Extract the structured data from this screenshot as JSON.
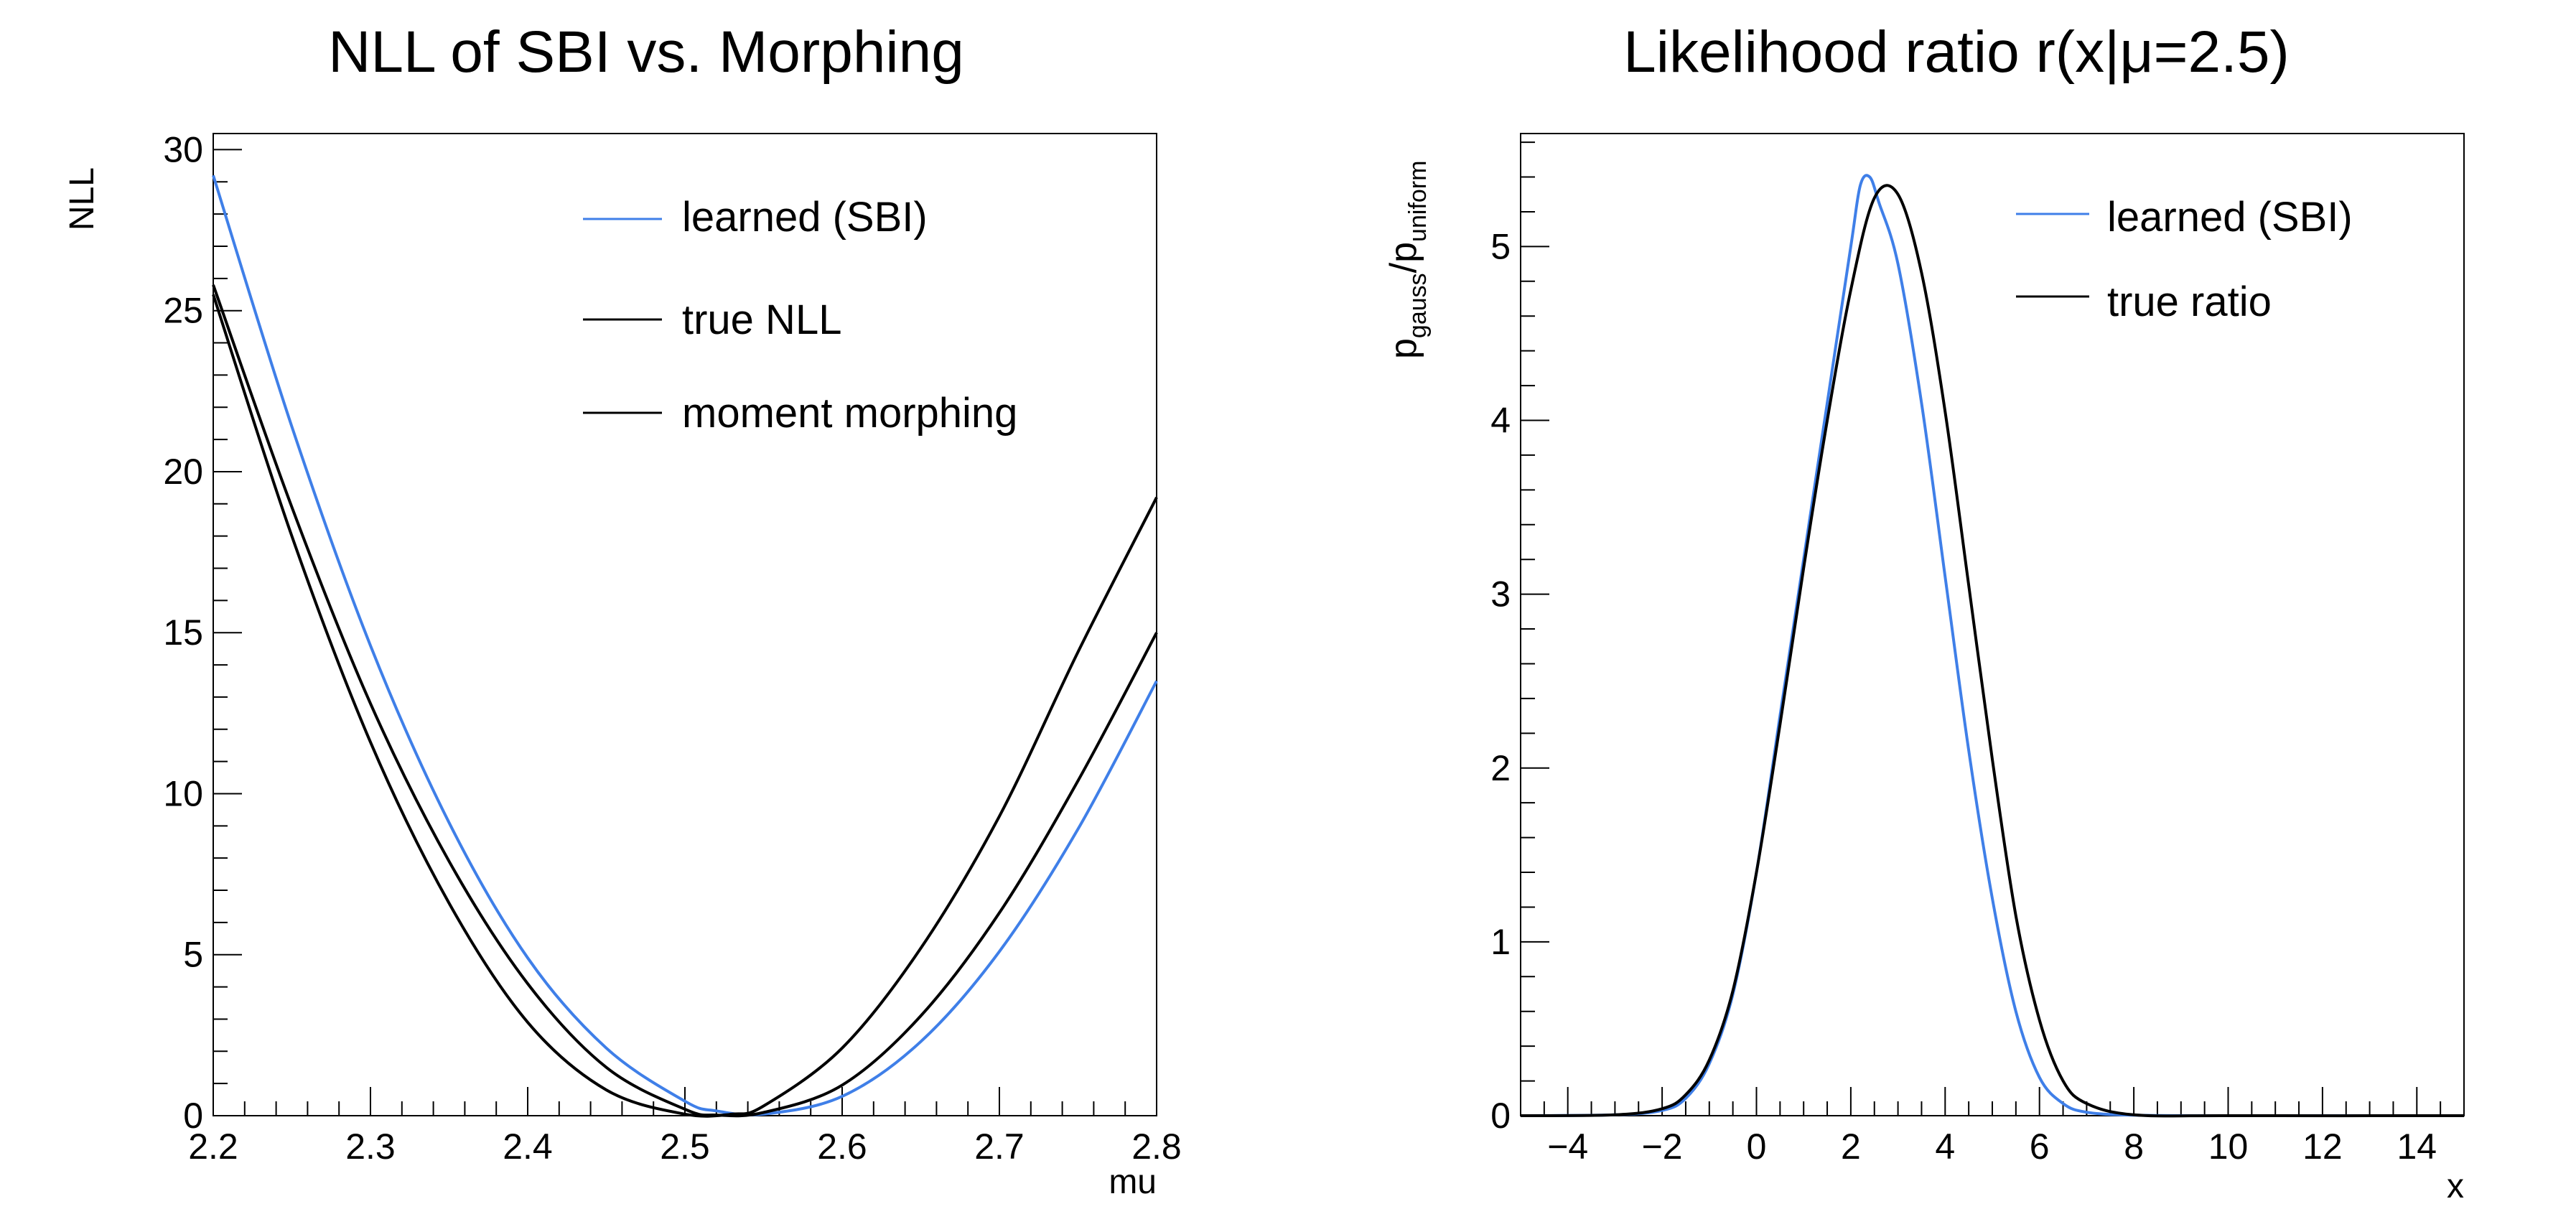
{
  "colors": {
    "sbi": "#3f7fe8",
    "truth": "#000000",
    "axis": "#000000",
    "background": "#ffffff"
  },
  "chart_data": [
    {
      "type": "line",
      "title": "NLL of SBI vs. Morphing",
      "xlabel": "mu",
      "ylabel": "NLL",
      "xlim": [
        2.2,
        2.8
      ],
      "ylim": [
        0,
        30.5
      ],
      "xticks": [
        2.2,
        2.3,
        2.4,
        2.5,
        2.6,
        2.7,
        2.8
      ],
      "xtick_labels": [
        "2.2",
        "2.3",
        "2.4",
        "2.5",
        "2.6",
        "2.7",
        "2.8"
      ],
      "yticks": [
        0,
        5,
        10,
        15,
        20,
        25,
        30
      ],
      "ytick_labels": [
        "0",
        "5",
        "10",
        "15",
        "20",
        "25",
        "30"
      ],
      "grid": false,
      "legend_position": "top-right",
      "series": [
        {
          "name": "learned (SBI)",
          "color": "#3f7fe8",
          "x": [
            2.2,
            2.25,
            2.3,
            2.35,
            2.4,
            2.45,
            2.5,
            2.52,
            2.55,
            2.6,
            2.65,
            2.7,
            2.75,
            2.8
          ],
          "y": [
            29.2,
            21.4,
            14.6,
            9.1,
            4.9,
            2.1,
            0.45,
            0.15,
            0.05,
            0.6,
            2.3,
            5.1,
            8.9,
            13.5
          ]
        },
        {
          "name": "true NLL",
          "color": "#000000",
          "x": [
            2.2,
            2.25,
            2.3,
            2.35,
            2.4,
            2.45,
            2.5,
            2.52,
            2.55,
            2.6,
            2.65,
            2.7,
            2.75,
            2.8
          ],
          "y": [
            25.8,
            18.9,
            12.8,
            7.9,
            4.1,
            1.5,
            0.2,
            0.02,
            0.1,
            0.95,
            3.1,
            6.3,
            10.4,
            15.0
          ]
        },
        {
          "name": "moment morphing",
          "color": "#000000",
          "x": [
            2.2,
            2.25,
            2.3,
            2.35,
            2.4,
            2.45,
            2.5,
            2.53,
            2.55,
            2.6,
            2.65,
            2.7,
            2.75,
            2.8
          ],
          "y": [
            25.5,
            18.0,
            11.6,
            6.6,
            2.9,
            0.8,
            0.05,
            0.05,
            0.3,
            2.1,
            5.2,
            9.3,
            14.4,
            19.2
          ]
        }
      ]
    },
    {
      "type": "line",
      "title": "Likelihood ratio r(x|μ=2.5)",
      "xlabel": "x",
      "ylabel_main": "p",
      "ylabel_sub1": "gauss",
      "ylabel_mid": "/p",
      "ylabel_sub2": "uniform",
      "xlim": [
        -5,
        15
      ],
      "ylim": [
        0,
        5.65
      ],
      "xticks": [
        -4,
        -2,
        0,
        2,
        4,
        6,
        8,
        10,
        12,
        14
      ],
      "xtick_labels": [
        "−4",
        "−2",
        "0",
        "2",
        "4",
        "6",
        "8",
        "10",
        "12",
        "14"
      ],
      "yticks": [
        0,
        1,
        2,
        3,
        4,
        5
      ],
      "ytick_labels": [
        "0",
        "1",
        "2",
        "3",
        "4",
        "5"
      ],
      "grid": false,
      "legend_position": "top-right",
      "series": [
        {
          "name": "learned (SBI)",
          "color": "#3f7fe8",
          "x": [
            -5,
            -3,
            -2,
            -1.5,
            -1,
            -0.5,
            0,
            0.5,
            1,
            1.5,
            2,
            2.2,
            2.4,
            2.6,
            3,
            3.5,
            4,
            4.5,
            5,
            5.5,
            6,
            6.5,
            7,
            8,
            10,
            15
          ],
          "y": [
            0,
            0.005,
            0.03,
            0.1,
            0.3,
            0.7,
            1.4,
            2.3,
            3.2,
            4.1,
            5.0,
            5.35,
            5.4,
            5.25,
            4.9,
            4.1,
            3.1,
            2.1,
            1.25,
            0.6,
            0.22,
            0.07,
            0.02,
            0.003,
            0,
            0
          ]
        },
        {
          "name": "true ratio",
          "color": "#000000",
          "x": [
            -5,
            -3,
            -2,
            -1.5,
            -1,
            -0.5,
            0,
            0.5,
            1,
            1.5,
            2,
            2.5,
            3,
            3.5,
            4,
            4.5,
            5,
            5.5,
            6,
            6.5,
            7,
            8,
            10,
            15
          ],
          "y": [
            0,
            0.005,
            0.04,
            0.12,
            0.32,
            0.72,
            1.4,
            2.25,
            3.15,
            4.0,
            4.75,
            5.28,
            5.3,
            4.85,
            4.05,
            3.05,
            2.05,
            1.15,
            0.55,
            0.2,
            0.07,
            0.005,
            0,
            0
          ]
        }
      ]
    }
  ]
}
